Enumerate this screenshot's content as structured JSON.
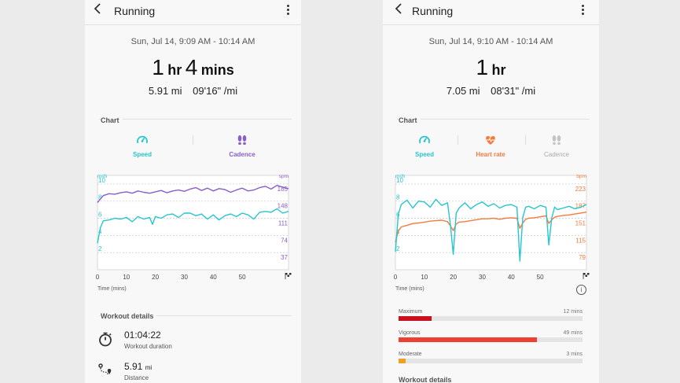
{
  "left": {
    "title": "Running",
    "datetime": "Sun, Jul 14, 9:09 AM - 10:14 AM",
    "duration": {
      "h": "1",
      "h_unit": "hr",
      "m": "4",
      "m_unit": "mins"
    },
    "distance": "5.91 mi",
    "pace": "09'16\" /mi",
    "chart_label": "Chart",
    "tabs": [
      {
        "label": "Speed",
        "color": "#26c6d0",
        "icon": "speedometer-icon"
      },
      {
        "label": "Cadence",
        "color": "#8a5ec8",
        "icon": "footprints-icon"
      }
    ],
    "workout_details_label": "Workout details",
    "details": [
      {
        "value": "01:04:22",
        "label": "Workout duration",
        "icon": "stopwatch-icon"
      },
      {
        "value": "5.91",
        "unit": "mi",
        "label": "Distance",
        "icon": "route-icon"
      }
    ]
  },
  "right": {
    "title": "Running",
    "datetime": "Sun, Jul 14, 9:10 AM - 10:14 AM",
    "duration": {
      "h": "1",
      "h_unit": "hr"
    },
    "distance": "7.05 mi",
    "pace": "08'31\" /mi",
    "chart_label": "Chart",
    "tabs": [
      {
        "label": "Speed",
        "color": "#26c6d0",
        "icon": "speedometer-icon"
      },
      {
        "label": "Heart rate",
        "color": "#f47b3c",
        "icon": "heart-icon"
      },
      {
        "label": "Cadence",
        "color": "#bbbbbb",
        "icon": "footprints-icon"
      }
    ],
    "zones": [
      {
        "name": "Maximum",
        "time": "12 mins",
        "fraction": 0.18,
        "color": "#c8101e"
      },
      {
        "name": "Vigorous",
        "time": "49 mins",
        "fraction": 0.75,
        "color": "#ee4030"
      },
      {
        "name": "Moderate",
        "time": "3 mins",
        "fraction": 0.04,
        "color": "#f0a020"
      }
    ],
    "workout_details_label": "Workout details"
  },
  "time_axis_label": "Time (mins)",
  "chart_data": [
    {
      "type": "line",
      "xlabel": "Time (mins)",
      "x_ticks": [
        "0",
        "10",
        "20",
        "30",
        "40",
        "50"
      ],
      "xlim": [
        0,
        66
      ],
      "left_axis": {
        "unit": "mi/h",
        "ticks": [
          "10",
          "8",
          "6",
          "4",
          "2"
        ],
        "ylim": [
          0,
          11
        ]
      },
      "right_axis": {
        "unit": "spm",
        "ticks": [
          "185",
          "148",
          "111",
          "74",
          "37"
        ],
        "ylim": [
          0,
          203.5
        ]
      },
      "series": [
        {
          "name": "Speed",
          "axis": "left",
          "color": "#26c6d0",
          "x": [
            0,
            1,
            2,
            4,
            6,
            8,
            10,
            12,
            14,
            16,
            18,
            19,
            20,
            22,
            24,
            26,
            28,
            30,
            32,
            34,
            36,
            38,
            40,
            42,
            44,
            46,
            48,
            50,
            52,
            54,
            56,
            58,
            60,
            62,
            64,
            66
          ],
          "y": [
            3.1,
            4.9,
            5.7,
            5.8,
            6.0,
            5.9,
            6.1,
            5.6,
            6.2,
            5.9,
            6.1,
            5.3,
            6.2,
            6.0,
            6.4,
            6.5,
            6.1,
            6.6,
            6.6,
            6.3,
            6.5,
            5.9,
            6.4,
            5.8,
            6.3,
            6.5,
            6.2,
            6.6,
            6.4,
            5.9,
            6.7,
            6.8,
            6.7,
            7.1,
            6.6,
            6.8
          ]
        },
        {
          "name": "Cadence",
          "axis": "right",
          "color": "#8a5ec8",
          "x": [
            0,
            2,
            4,
            6,
            8,
            10,
            12,
            14,
            16,
            18,
            20,
            22,
            24,
            26,
            28,
            30,
            32,
            34,
            36,
            38,
            40,
            42,
            44,
            46,
            48,
            50,
            52,
            54,
            56,
            58,
            60,
            62,
            64,
            66
          ],
          "y": [
            145,
            160,
            164,
            163,
            166,
            168,
            165,
            170,
            167,
            165,
            168,
            171,
            166,
            170,
            172,
            169,
            174,
            177,
            171,
            176,
            170,
            175,
            173,
            167,
            172,
            176,
            170,
            172,
            177,
            180,
            174,
            182,
            178,
            175
          ]
        }
      ]
    },
    {
      "type": "line",
      "xlabel": "Time (mins)",
      "x_ticks": [
        "0",
        "10",
        "20",
        "30",
        "40",
        "50"
      ],
      "xlim": [
        0,
        66
      ],
      "left_axis": {
        "unit": "mi/h",
        "ticks": [
          "10",
          "8",
          "6",
          "4",
          "2"
        ],
        "ylim": [
          0,
          11
        ]
      },
      "right_axis": {
        "unit": "bpm",
        "ticks": [
          "223",
          "187",
          "151",
          "115",
          "79"
        ],
        "ylim": [
          43,
          241
        ]
      },
      "series": [
        {
          "name": "Speed",
          "axis": "left",
          "color": "#26c6d0",
          "x": [
            0,
            1,
            2,
            4,
            6,
            8,
            10,
            12,
            14,
            16,
            18,
            19,
            20,
            21,
            22,
            24,
            26,
            28,
            30,
            32,
            34,
            36,
            38,
            40,
            42,
            43,
            44,
            45,
            46,
            48,
            50,
            52,
            53,
            54,
            55,
            56,
            58,
            60,
            62,
            64,
            66
          ],
          "y": [
            2.1,
            6.5,
            7.6,
            8.1,
            7.2,
            8.0,
            7.9,
            7.3,
            8.2,
            7.5,
            7.8,
            5.2,
            1.8,
            6.6,
            7.2,
            7.8,
            7.1,
            7.6,
            7.9,
            7.4,
            7.7,
            7.2,
            7.5,
            7.6,
            7.3,
            1.0,
            6.1,
            7.3,
            7.4,
            7.1,
            7.5,
            7.3,
            2.9,
            6.0,
            7.3,
            7.0,
            7.2,
            7.4,
            7.1,
            7.3,
            7.6
          ]
        },
        {
          "name": "Heart rate",
          "axis": "right",
          "color": "#f47b3c",
          "x": [
            0,
            1,
            2,
            4,
            6,
            8,
            10,
            12,
            14,
            16,
            18,
            19,
            20,
            21,
            22,
            24,
            26,
            28,
            30,
            32,
            34,
            36,
            38,
            40,
            42,
            43,
            44,
            45,
            46,
            48,
            50,
            52,
            53,
            54,
            55,
            56,
            58,
            60,
            62,
            64,
            66
          ],
          "y": [
            101,
            124,
            133,
            136,
            140,
            141,
            143,
            145,
            146,
            147,
            144,
            135,
            125,
            139,
            143,
            144,
            146,
            148,
            150,
            150,
            151,
            149,
            151,
            152,
            151,
            130,
            141,
            149,
            151,
            152,
            154,
            156,
            140,
            148,
            153,
            155,
            157,
            158,
            160,
            162,
            164
          ]
        }
      ]
    }
  ]
}
